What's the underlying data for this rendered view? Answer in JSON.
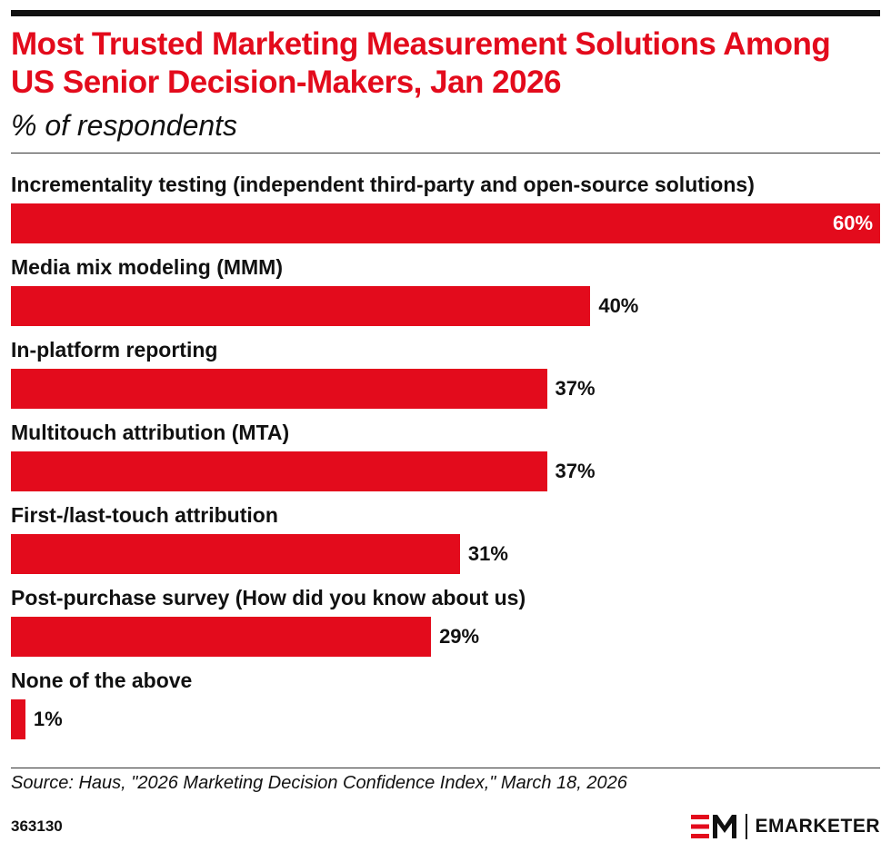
{
  "title": "Most Trusted Marketing Measurement Solutions Among US Senior Decision-Makers, Jan 2026",
  "subtitle": "% of respondents",
  "source": "Source: Haus, \"2026 Marketing Decision Confidence Index,\" March 18, 2026",
  "chart_id": "363130",
  "brand": {
    "mark": "EM",
    "name": "EMARKETER"
  },
  "colors": {
    "accent": "#e30b1c",
    "text": "#111111"
  },
  "chart_data": {
    "type": "bar",
    "orientation": "horizontal",
    "title": "Most Trusted Marketing Measurement Solutions Among US Senior Decision-Makers, Jan 2026",
    "subtitle": "% of respondents",
    "categories": [
      "Incrementality testing (independent third-party and open-source solutions)",
      "Media mix modeling (MMM)",
      "In-platform reporting",
      "Multitouch attribution (MTA)",
      "First-/last-touch attribution",
      "Post-purchase survey (How did you know about us)",
      "None of the above"
    ],
    "values": [
      60,
      40,
      37,
      37,
      31,
      29,
      1
    ],
    "value_labels": [
      "60%",
      "40%",
      "37%",
      "37%",
      "31%",
      "29%",
      "1%"
    ],
    "xlim": [
      0,
      60
    ],
    "grid": false,
    "legend": "none"
  }
}
